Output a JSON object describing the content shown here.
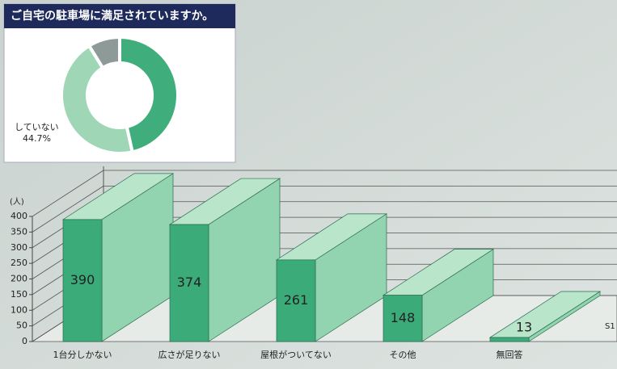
{
  "chart_data": [
    {
      "type": "pie",
      "title": "ご自宅の駐車場に満足されていますか。",
      "categories": [
        null,
        "していない",
        null
      ],
      "values": [
        46.5,
        44.7,
        8.8
      ],
      "value_labels": [
        null,
        "44.7%",
        null
      ],
      "colors": [
        "#3fae7c",
        "#9fd6b6",
        "#8e9a98"
      ]
    },
    {
      "type": "bar",
      "y_label": "(人)",
      "categories": [
        "1台分しかない",
        "広さが足りない",
        "屋根がついてない",
        "その他",
        "無回答"
      ],
      "series": [
        {
          "name": "S1",
          "color": "#3aab79",
          "values": [
            390,
            374,
            261,
            148,
            13
          ]
        }
      ],
      "ylim": [
        0,
        400
      ],
      "yticks": [
        0,
        50,
        100,
        150,
        200,
        250,
        300,
        350,
        400
      ],
      "grid": true
    }
  ]
}
